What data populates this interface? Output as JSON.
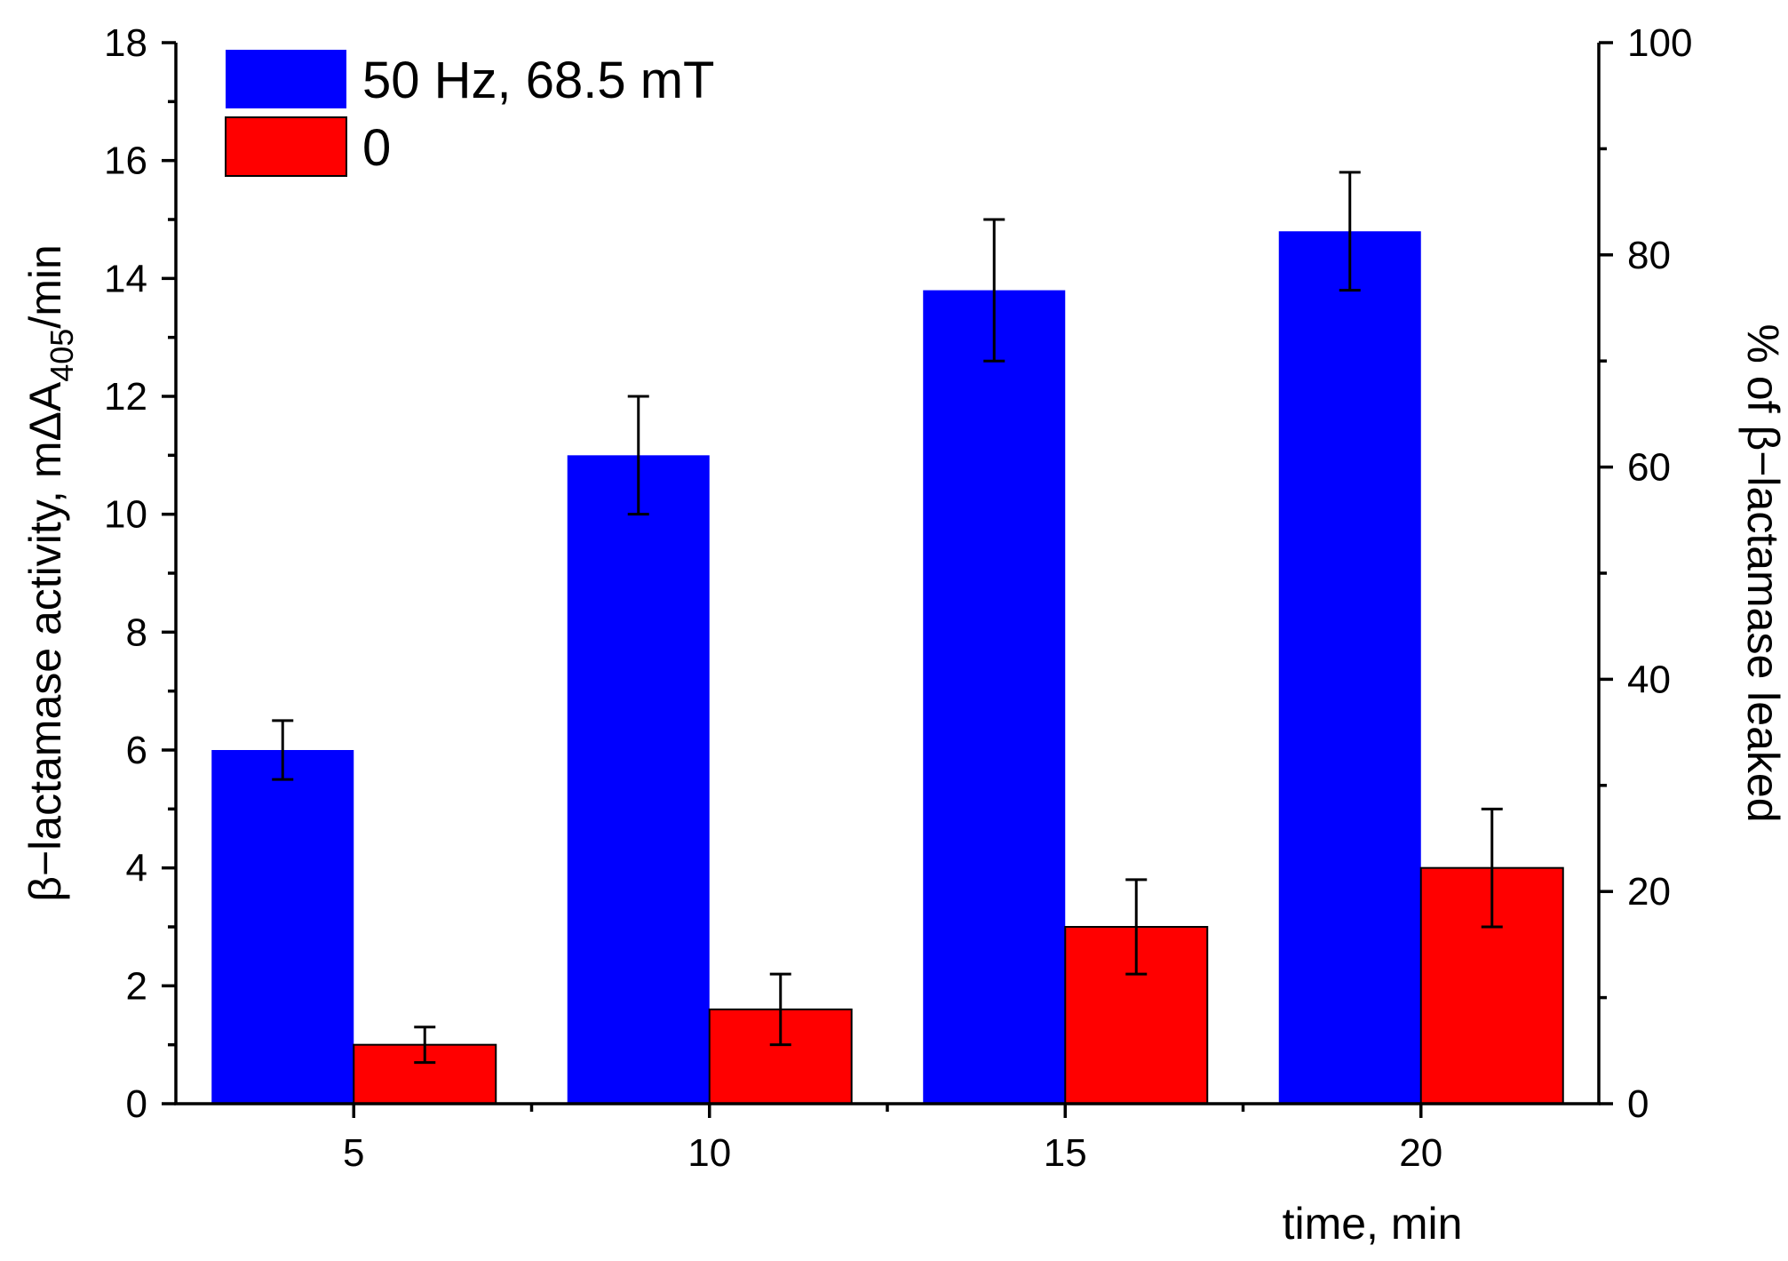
{
  "chart_data": {
    "type": "bar",
    "categories": [
      "5",
      "10",
      "15",
      "20"
    ],
    "series": [
      {
        "name": "50 Hz, 68.5 mT",
        "color": "#0000FF",
        "values": [
          6.0,
          11.0,
          13.8,
          14.8
        ],
        "errors": [
          0.5,
          1.0,
          1.2,
          1.0
        ]
      },
      {
        "name": "0",
        "color": "#FF0000",
        "values": [
          1.0,
          1.6,
          3.0,
          4.0
        ],
        "errors": [
          0.3,
          0.6,
          0.8,
          1.0
        ]
      }
    ],
    "xlabel": "time, min",
    "ylabel_prefix": "β−lactamase activity, mΔA",
    "ylabel_subscript": "405",
    "ylabel_suffix": "/min",
    "y2label": "% of β−lactamase leaked",
    "ylim": [
      0,
      18
    ],
    "yticks": [
      "0",
      "2",
      "4",
      "6",
      "8",
      "10",
      "12",
      "14",
      "16",
      "18"
    ],
    "y2lim": [
      0,
      100
    ],
    "y2ticks": [
      "0",
      "20",
      "40",
      "60",
      "80",
      "100"
    ],
    "legend_position": "top-left",
    "grid": false
  }
}
